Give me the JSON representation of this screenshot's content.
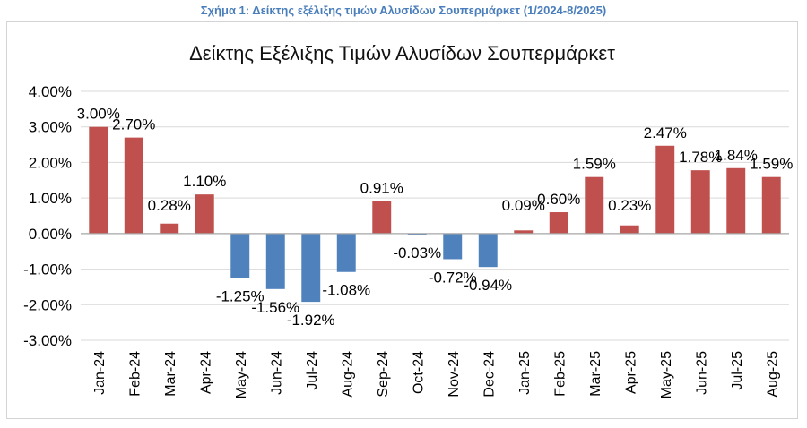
{
  "caption": "Σχήμα 1: Δείκτης εξέλιξης τιμών Αλυσίδων Σουπερμάρκετ (1/2024-8/2025)",
  "colors": {
    "positive": "#C0504D",
    "negative": "#4F81BD",
    "caption": "#4A7EBB",
    "grid": "#D9D9D9",
    "text": "#000000"
  },
  "chart_data": {
    "type": "bar",
    "title": "Δείκτης Εξέλιξης Τιμών Αλυσίδων Σουπερμάρκετ",
    "xlabel": "",
    "ylabel": "",
    "ylim": [
      -3,
      4
    ],
    "yticks": [
      4,
      3,
      2,
      1,
      0,
      -1,
      -2,
      -3
    ],
    "ytick_labels": [
      "4.00%",
      "3.00%",
      "2.00%",
      "1.00%",
      "0.00%",
      "-1.00%",
      "-2.00%",
      "-3.00%"
    ],
    "grid": true,
    "legend": "none",
    "categories": [
      "Jan-24",
      "Feb-24",
      "Mar-24",
      "Apr-24",
      "May-24",
      "Jun-24",
      "Jul-24",
      "Aug-24",
      "Sep-24",
      "Oct-24",
      "Nov-24",
      "Dec-24",
      "Jan-25",
      "Feb-25",
      "Mar-25",
      "Apr-25",
      "May-25",
      "Jun-25",
      "Jul-25",
      "Aug-25"
    ],
    "values": [
      3.0,
      2.7,
      0.28,
      1.1,
      -1.25,
      -1.56,
      -1.92,
      -1.08,
      0.91,
      -0.03,
      -0.72,
      -0.94,
      0.09,
      0.6,
      1.59,
      0.23,
      2.47,
      1.78,
      1.84,
      1.59
    ],
    "data_labels": [
      "3.00%",
      "2.70%",
      "0.28%",
      "1.10%",
      "-1.25%",
      "-1.56%",
      "-1.92%",
      "-1.08%",
      "0.91%",
      "-0.03%",
      "-0.72%",
      "-0.94%",
      "0.09%",
      "0.60%",
      "1.59%",
      "0.23%",
      "2.47%",
      "1.78%",
      "1.84%",
      "1.59%"
    ]
  }
}
